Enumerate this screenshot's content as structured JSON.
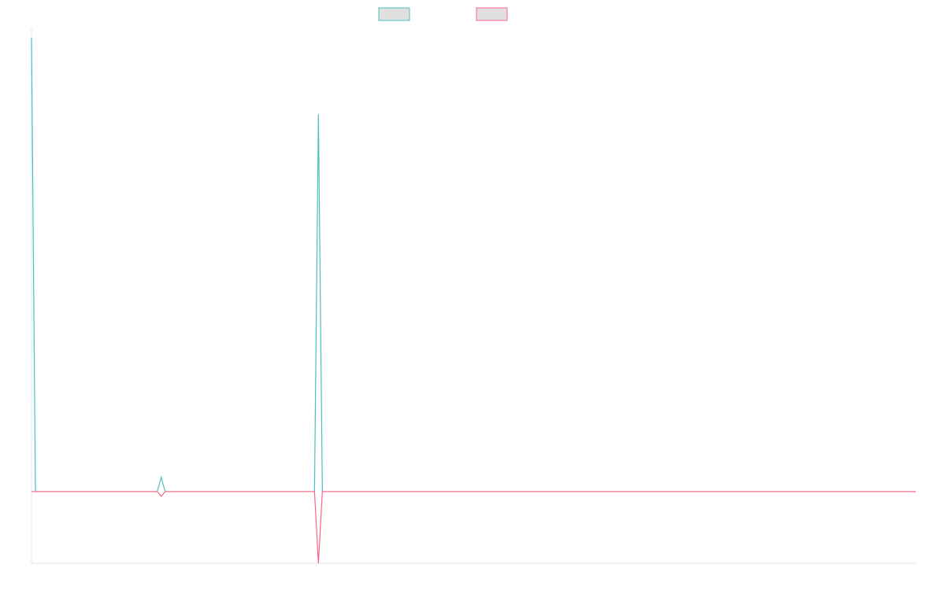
{
  "chart_data": {
    "type": "line",
    "title": "",
    "xlabel": "",
    "ylabel": "",
    "x": [
      0,
      1,
      2,
      3,
      4,
      5,
      6,
      7,
      8,
      9,
      10,
      11,
      12,
      13,
      14,
      15,
      16,
      17,
      18,
      19,
      20,
      21,
      22,
      23,
      24,
      25,
      26,
      27,
      28,
      29,
      30,
      31,
      32,
      33,
      34,
      35,
      36,
      37,
      38,
      39,
      40,
      41,
      42,
      43,
      44,
      45,
      46,
      47,
      48,
      49,
      50,
      51,
      52,
      53,
      54,
      55,
      56,
      57,
      58,
      59,
      60,
      61,
      62,
      63,
      64,
      65,
      66,
      67,
      68,
      69,
      70,
      71,
      72,
      73,
      74,
      75,
      76,
      77,
      78,
      79,
      80,
      81,
      82,
      83,
      84,
      85,
      86,
      87,
      88,
      89,
      90,
      91,
      92,
      93,
      94,
      95,
      96,
      97,
      98,
      99,
      100,
      101,
      102,
      103,
      104,
      105,
      106,
      107,
      108,
      109,
      110,
      111,
      112,
      113,
      114,
      115,
      116,
      117,
      118,
      119,
      120,
      121,
      122,
      123,
      124,
      125,
      126,
      127,
      128,
      129,
      130,
      131,
      132,
      133,
      134,
      135,
      136,
      137,
      138,
      139,
      140,
      141,
      142,
      143,
      144,
      145,
      146,
      147,
      148,
      149,
      150,
      151,
      152,
      153,
      154,
      155,
      156,
      157,
      158,
      159,
      160,
      161,
      162,
      163,
      164,
      165,
      166,
      167,
      168,
      169,
      170,
      171,
      172,
      173,
      174,
      175,
      176,
      177,
      178,
      179,
      180,
      181,
      182,
      183,
      184,
      185,
      186,
      187,
      188,
      189,
      190,
      191,
      192,
      193,
      194,
      195,
      196,
      197,
      198,
      199,
      200,
      201,
      202,
      203,
      204,
      205,
      206,
      207,
      208,
      209,
      210,
      211,
      212,
      213,
      214,
      215,
      216,
      217,
      218,
      219,
      220,
      221,
      222,
      223,
      224,
      225
    ],
    "xlim": [
      0,
      225
    ],
    "ylim": [
      -15,
      97
    ],
    "grid": false,
    "legend_position": "top-center",
    "series": [
      {
        "color": "#4bc0c0",
        "fill": "#e0e0e0",
        "values": [
          95,
          0,
          0,
          0,
          0,
          0,
          0,
          0,
          0,
          0,
          0,
          0,
          0,
          0,
          0,
          0,
          0,
          0,
          0,
          0,
          0,
          0,
          0,
          0,
          0,
          0,
          0,
          0,
          0,
          0,
          0,
          0,
          0,
          3,
          0,
          0,
          0,
          0,
          0,
          0,
          0,
          0,
          0,
          0,
          0,
          0,
          0,
          0,
          0,
          0,
          0,
          0,
          0,
          0,
          0,
          0,
          0,
          0,
          0,
          0,
          0,
          0,
          0,
          0,
          0,
          0,
          0,
          0,
          0,
          0,
          0,
          0,
          0,
          79,
          0,
          0,
          0,
          0,
          0,
          0,
          0,
          0,
          0,
          0,
          0,
          0,
          0,
          0,
          0,
          0,
          0,
          0,
          0,
          0,
          0,
          0,
          0,
          0,
          0,
          0,
          0,
          0,
          0,
          0,
          0,
          0,
          0,
          0,
          0,
          0,
          0,
          0,
          0,
          0,
          0,
          0,
          0,
          0,
          0,
          0,
          0,
          0,
          0,
          0,
          0,
          0,
          0,
          0,
          0,
          0,
          0,
          0,
          0,
          0,
          0,
          0,
          0,
          0,
          0,
          0,
          0,
          0,
          0,
          0,
          0,
          0,
          0,
          0,
          0,
          0,
          0,
          0,
          0,
          0,
          0,
          0,
          0,
          0,
          0,
          0,
          0,
          0,
          0,
          0,
          0,
          0,
          0,
          0,
          0,
          0,
          0,
          0,
          0,
          0,
          0,
          0,
          0,
          0,
          0,
          0,
          0,
          0,
          0,
          0,
          0,
          0,
          0,
          0,
          0,
          0,
          0,
          0,
          0,
          0,
          0,
          0,
          0,
          0,
          0,
          0,
          0,
          0,
          0,
          0,
          0,
          0,
          0,
          0,
          0,
          0,
          0,
          0,
          0,
          0,
          0,
          0,
          0,
          0,
          0,
          0,
          0,
          0,
          0,
          0,
          0,
          0
        ]
      },
      {
        "color": "#ff6384",
        "fill": "#e0e0e0",
        "values": [
          0,
          0,
          0,
          0,
          0,
          0,
          0,
          0,
          0,
          0,
          0,
          0,
          0,
          0,
          0,
          0,
          0,
          0,
          0,
          0,
          0,
          0,
          0,
          0,
          0,
          0,
          0,
          0,
          0,
          0,
          0,
          0,
          0,
          -1,
          0,
          0,
          0,
          0,
          0,
          0,
          0,
          0,
          0,
          0,
          0,
          0,
          0,
          0,
          0,
          0,
          0,
          0,
          0,
          0,
          0,
          0,
          0,
          0,
          0,
          0,
          0,
          0,
          0,
          0,
          0,
          0,
          0,
          0,
          0,
          0,
          0,
          0,
          0,
          -15,
          0,
          0,
          0,
          0,
          0,
          0,
          0,
          0,
          0,
          0,
          0,
          0,
          0,
          0,
          0,
          0,
          0,
          0,
          0,
          0,
          0,
          0,
          0,
          0,
          0,
          0,
          0,
          0,
          0,
          0,
          0,
          0,
          0,
          0,
          0,
          0,
          0,
          0,
          0,
          0,
          0,
          0,
          0,
          0,
          0,
          0,
          0,
          0,
          0,
          0,
          0,
          0,
          0,
          0,
          0,
          0,
          0,
          0,
          0,
          0,
          0,
          0,
          0,
          0,
          0,
          0,
          0,
          0,
          0,
          0,
          0,
          0,
          0,
          0,
          0,
          0,
          0,
          0,
          0,
          0,
          0,
          0,
          0,
          0,
          0,
          0,
          0,
          0,
          0,
          0,
          0,
          0,
          0,
          0,
          0,
          0,
          0,
          0,
          0,
          0,
          0,
          0,
          0,
          0,
          0,
          0,
          0,
          0,
          0,
          0,
          0,
          0,
          0,
          0,
          0,
          0,
          0,
          0,
          0,
          0,
          0,
          0,
          0,
          0,
          0,
          0,
          0,
          0,
          0,
          0,
          0,
          0,
          0,
          0,
          0,
          0,
          0,
          0,
          0,
          0,
          0,
          0,
          0,
          0,
          0,
          0,
          0,
          0,
          0,
          0,
          0,
          0
        ]
      }
    ]
  }
}
